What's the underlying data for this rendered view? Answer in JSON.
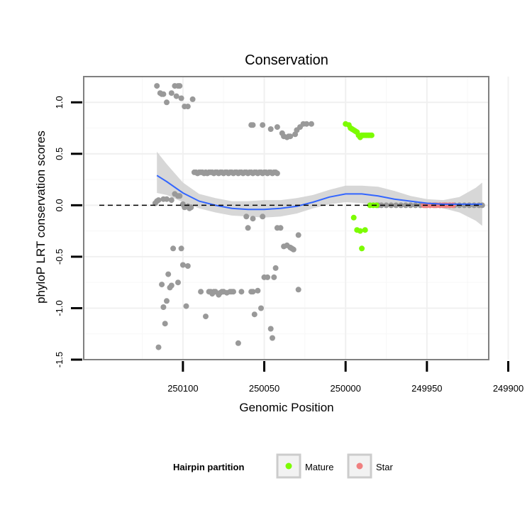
{
  "chart_data": {
    "type": "scatter",
    "title": "Conservation",
    "xlabel": "Genomic Position",
    "ylabel": "phyloP LRT conservation scores",
    "x_reversed": true,
    "xlim": [
      250161,
      249912
    ],
    "ylim": [
      -1.5,
      1.25
    ],
    "x_ticks": [
      250100,
      250050,
      250000,
      249950,
      249900
    ],
    "x_tick_labels": [
      "250100",
      "250050",
      "250000",
      "249950",
      "249900"
    ],
    "y_ticks": [
      -1.5,
      -1.0,
      -0.5,
      0.0,
      0.5,
      1.0
    ],
    "y_tick_labels": [
      "-1.5",
      "-1.0",
      "-0.5",
      "0.0",
      "0.5",
      "1.0"
    ],
    "reference_line": {
      "y": 0,
      "style": "dashed"
    },
    "grid": true,
    "legend": {
      "title": "Hairpin partition",
      "position": "bottom",
      "entries": [
        {
          "label": "Mature",
          "color": "#7cfc00"
        },
        {
          "label": "Star",
          "color": "#f08080"
        }
      ]
    },
    "colors": {
      "other": "#999999",
      "mature": "#7cfc00",
      "star": "#f08080",
      "smooth": "#3366ff",
      "ribbon": "#d3d3d3"
    },
    "series": [
      {
        "name": "Other",
        "points": [
          [
            250116,
            1.16
          ],
          [
            250114,
            1.09
          ],
          [
            250113,
            1.08
          ],
          [
            250112,
            1.08
          ],
          [
            250110,
            1.0
          ],
          [
            250107,
            1.09
          ],
          [
            250105,
            1.16
          ],
          [
            250104,
            1.06
          ],
          [
            250103,
            1.16
          ],
          [
            250102,
            1.16
          ],
          [
            250101,
            1.04
          ],
          [
            250099,
            0.96
          ],
          [
            250097,
            0.96
          ],
          [
            250094,
            1.03
          ],
          [
            250093,
            0.32
          ],
          [
            250092,
            0.32
          ],
          [
            250091,
            0.31
          ],
          [
            250090,
            0.32
          ],
          [
            250089,
            0.32
          ],
          [
            250088,
            0.32
          ],
          [
            250087,
            0.31
          ],
          [
            250086,
            0.32
          ],
          [
            250085,
            0.31
          ],
          [
            250084,
            0.32
          ],
          [
            250083,
            0.32
          ],
          [
            250082,
            0.32
          ],
          [
            250081,
            0.31
          ],
          [
            250080,
            0.32
          ],
          [
            250079,
            0.32
          ],
          [
            250078,
            0.31
          ],
          [
            250077,
            0.32
          ],
          [
            250076,
            0.32
          ],
          [
            250075,
            0.31
          ],
          [
            250074,
            0.32
          ],
          [
            250073,
            0.32
          ],
          [
            250072,
            0.31
          ],
          [
            250071,
            0.32
          ],
          [
            250070,
            0.32
          ],
          [
            250069,
            0.31
          ],
          [
            250068,
            0.32
          ],
          [
            250067,
            0.32
          ],
          [
            250066,
            0.31
          ],
          [
            250065,
            0.32
          ],
          [
            250064,
            0.32
          ],
          [
            250063,
            0.31
          ],
          [
            250062,
            0.32
          ],
          [
            250061,
            0.32
          ],
          [
            250060,
            0.31
          ],
          [
            250059,
            0.32
          ],
          [
            250058,
            0.32
          ],
          [
            250057,
            0.31
          ],
          [
            250056,
            0.32
          ],
          [
            250055,
            0.32
          ],
          [
            250054,
            0.31
          ],
          [
            250053,
            0.32
          ],
          [
            250052,
            0.32
          ],
          [
            250051,
            0.31
          ],
          [
            250050,
            0.32
          ],
          [
            250049,
            0.32
          ],
          [
            250048,
            0.31
          ],
          [
            250047,
            0.32
          ],
          [
            250046,
            0.32
          ],
          [
            250045,
            0.31
          ],
          [
            250044,
            0.32
          ],
          [
            250043,
            0.32
          ],
          [
            250042,
            0.31
          ],
          [
            250117,
            0.02
          ],
          [
            250116,
            0.04
          ],
          [
            250115,
            0.05
          ],
          [
            250112,
            0.06
          ],
          [
            250110,
            0.06
          ],
          [
            250107,
            0.05
          ],
          [
            250105,
            0.11
          ],
          [
            250103,
            0.09
          ],
          [
            250102,
            0.09
          ],
          [
            250100,
            0.01
          ],
          [
            250099,
            -0.02
          ],
          [
            250097,
            -0.01
          ],
          [
            250096,
            -0.03
          ],
          [
            250095,
            -0.02
          ],
          [
            250115,
            -1.38
          ],
          [
            250113,
            -0.77
          ],
          [
            250112,
            -0.99
          ],
          [
            250111,
            -1.15
          ],
          [
            250110,
            -0.93
          ],
          [
            250109,
            -0.67
          ],
          [
            250108,
            -0.8
          ],
          [
            250107,
            -0.78
          ],
          [
            250106,
            -0.42
          ],
          [
            250103,
            -0.75
          ],
          [
            250101,
            -0.42
          ],
          [
            250100,
            -0.58
          ],
          [
            250098,
            -0.98
          ],
          [
            250097,
            -0.59
          ],
          [
            250089,
            -0.84
          ],
          [
            250086,
            -1.08
          ],
          [
            250084,
            -0.84
          ],
          [
            250083,
            -0.84
          ],
          [
            250082,
            -0.86
          ],
          [
            250081,
            -0.84
          ],
          [
            250080,
            -0.84
          ],
          [
            250078,
            -0.87
          ],
          [
            250077,
            -0.85
          ],
          [
            250076,
            -0.84
          ],
          [
            250075,
            -0.84
          ],
          [
            250073,
            -0.85
          ],
          [
            250071,
            -0.84
          ],
          [
            250070,
            -0.84
          ],
          [
            250069,
            -0.84
          ],
          [
            250066,
            -1.34
          ],
          [
            250064,
            -0.84
          ],
          [
            250058,
            -0.84
          ],
          [
            250057,
            -0.84
          ],
          [
            250056,
            -1.06
          ],
          [
            250054,
            -0.83
          ],
          [
            250052,
            -1.0
          ],
          [
            250050,
            -0.7
          ],
          [
            250048,
            -0.7
          ],
          [
            250046,
            -1.2
          ],
          [
            250045,
            -1.29
          ],
          [
            250044,
            -0.7
          ],
          [
            250043,
            -0.61
          ],
          [
            250042,
            -0.22
          ],
          [
            250040,
            -0.22
          ],
          [
            250038,
            -0.4
          ],
          [
            250036,
            -0.39
          ],
          [
            250034,
            -0.41
          ],
          [
            250033,
            -0.42
          ],
          [
            250032,
            -0.43
          ],
          [
            250029,
            -0.82
          ],
          [
            250029,
            -0.29
          ],
          [
            250058,
            0.78
          ],
          [
            250057,
            0.78
          ],
          [
            250051,
            0.78
          ],
          [
            250046,
            0.74
          ],
          [
            250042,
            0.76
          ],
          [
            250039,
            0.7
          ],
          [
            250038,
            0.67
          ],
          [
            250036,
            0.66
          ],
          [
            250035,
            0.67
          ],
          [
            250034,
            0.67
          ],
          [
            250031,
            0.69
          ],
          [
            250030,
            0.73
          ],
          [
            250028,
            0.76
          ],
          [
            250026,
            0.79
          ],
          [
            250024,
            0.79
          ],
          [
            250021,
            0.79
          ],
          [
            250061,
            -0.11
          ],
          [
            250060,
            -0.22
          ],
          [
            250057,
            -0.13
          ],
          [
            250051,
            -0.11
          ],
          [
            249980,
            0.0
          ],
          [
            249978,
            0.0
          ],
          [
            249975,
            0.0
          ],
          [
            249972,
            0.0
          ],
          [
            249969,
            0.0
          ],
          [
            249966,
            0.0
          ],
          [
            249963,
            0.0
          ],
          [
            249960,
            0.0
          ],
          [
            249957,
            0.0
          ],
          [
            249954,
            0.0
          ],
          [
            249951,
            0.0
          ],
          [
            249948,
            0.0
          ],
          [
            249945,
            0.0
          ],
          [
            249942,
            0.0
          ],
          [
            249939,
            0.0
          ],
          [
            249936,
            0.0
          ],
          [
            249933,
            0.0
          ],
          [
            249930,
            0.0
          ],
          [
            249927,
            0.0
          ],
          [
            249924,
            0.0
          ],
          [
            249921,
            0.0
          ],
          [
            249918,
            0.0
          ],
          [
            249916,
            0.0
          ]
        ]
      },
      {
        "name": "Mature",
        "points": [
          [
            250000,
            0.79
          ],
          [
            249998,
            0.78
          ],
          [
            249997,
            0.75
          ],
          [
            249996,
            0.74
          ],
          [
            249995,
            0.73
          ],
          [
            249994,
            0.72
          ],
          [
            249993,
            0.71
          ],
          [
            249992,
            0.68
          ],
          [
            249991,
            0.66
          ],
          [
            249990,
            0.68
          ],
          [
            249989,
            0.68
          ],
          [
            249988,
            0.68
          ],
          [
            249987,
            0.68
          ],
          [
            249986,
            0.68
          ],
          [
            249985,
            0.68
          ],
          [
            249984,
            0.68
          ],
          [
            249995,
            -0.12
          ],
          [
            249993,
            -0.24
          ],
          [
            249991,
            -0.25
          ],
          [
            249990,
            -0.42
          ],
          [
            249988,
            -0.24
          ],
          [
            249985,
            0.0
          ],
          [
            249983,
            0.0
          ],
          [
            249981,
            0.0
          ]
        ]
      },
      {
        "name": "Star",
        "points": [
          [
            249952,
            0.0
          ],
          [
            249950,
            0.0
          ],
          [
            249948,
            0.0
          ],
          [
            249946,
            0.0
          ],
          [
            249944,
            0.0
          ],
          [
            249942,
            0.0
          ],
          [
            249940,
            0.0
          ],
          [
            249938,
            0.0
          ],
          [
            249936,
            0.0
          ],
          [
            249934,
            0.0
          ]
        ]
      }
    ],
    "smooth": {
      "method": "loess",
      "x": [
        250116,
        250110,
        250100,
        250090,
        250080,
        250070,
        250060,
        250050,
        250040,
        250030,
        250020,
        250010,
        250000,
        249990,
        249980,
        249970,
        249960,
        249950,
        249940,
        249930,
        249920,
        249916
      ],
      "y": [
        0.29,
        0.23,
        0.12,
        0.04,
        0.0,
        -0.03,
        -0.04,
        -0.04,
        -0.03,
        -0.01,
        0.03,
        0.08,
        0.11,
        0.11,
        0.09,
        0.06,
        0.04,
        0.02,
        0.01,
        0.01,
        0.01,
        0.01
      ],
      "lower": [
        0.12,
        0.1,
        0.03,
        -0.03,
        -0.07,
        -0.1,
        -0.11,
        -0.12,
        -0.11,
        -0.08,
        -0.03,
        0.01,
        0.03,
        0.02,
        0.0,
        -0.02,
        -0.01,
        -0.01,
        -0.03,
        -0.07,
        -0.15,
        -0.2
      ],
      "upper": [
        0.52,
        0.4,
        0.22,
        0.11,
        0.07,
        0.04,
        0.04,
        0.05,
        0.05,
        0.07,
        0.1,
        0.15,
        0.19,
        0.19,
        0.18,
        0.14,
        0.09,
        0.06,
        0.05,
        0.08,
        0.17,
        0.22
      ]
    }
  }
}
